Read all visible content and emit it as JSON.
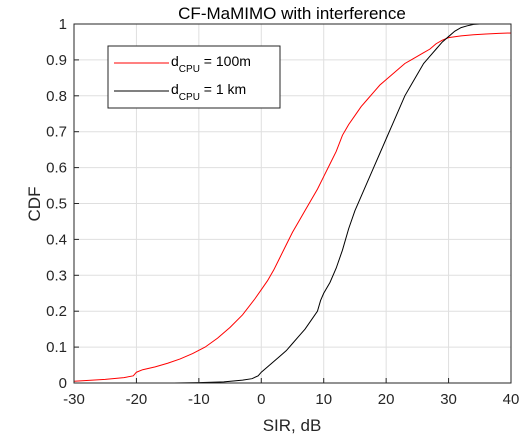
{
  "chart_data": {
    "type": "line",
    "title": "CF-MaMIMO with interference",
    "xlabel": "SIR, dB",
    "ylabel": "CDF",
    "xlim": [
      -30,
      40
    ],
    "ylim": [
      0,
      1
    ],
    "xticks": [
      -30,
      -20,
      -10,
      0,
      10,
      20,
      30,
      40
    ],
    "yticks": [
      0,
      0.1,
      0.2,
      0.3,
      0.4,
      0.5,
      0.6,
      0.7,
      0.8,
      0.9,
      1
    ],
    "grid": true,
    "legend_position": "top-left",
    "series": [
      {
        "name_main": "d",
        "name_sub": "CPU",
        "name_rest": " = 100m",
        "color": "#ff0000",
        "x": [
          -30,
          -28,
          -25,
          -22,
          -20.5,
          -20,
          -19,
          -17,
          -15,
          -13,
          -11,
          -9,
          -7,
          -5,
          -3,
          -1,
          0,
          1,
          2,
          3,
          4,
          5,
          6,
          7,
          8,
          9,
          10,
          11,
          12,
          13,
          14,
          15,
          16,
          17,
          18,
          19,
          20,
          21,
          22,
          23,
          24,
          25,
          26,
          27,
          28,
          29,
          30,
          32,
          34,
          36,
          38,
          40
        ],
        "y": [
          0.005,
          0.007,
          0.01,
          0.015,
          0.02,
          0.03,
          0.037,
          0.045,
          0.055,
          0.067,
          0.082,
          0.1,
          0.125,
          0.155,
          0.19,
          0.235,
          0.26,
          0.285,
          0.315,
          0.35,
          0.385,
          0.42,
          0.45,
          0.48,
          0.51,
          0.54,
          0.575,
          0.61,
          0.645,
          0.69,
          0.72,
          0.745,
          0.77,
          0.79,
          0.81,
          0.83,
          0.845,
          0.86,
          0.875,
          0.89,
          0.9,
          0.91,
          0.92,
          0.93,
          0.945,
          0.955,
          0.962,
          0.967,
          0.97,
          0.972,
          0.974,
          0.975
        ]
      },
      {
        "name_main": "d",
        "name_sub": "CPU",
        "name_rest": " = 1 km",
        "color": "#000000",
        "x": [
          -14,
          -10,
          -6,
          -3,
          -1.5,
          -0.5,
          0,
          1,
          2,
          3,
          4,
          5,
          6,
          7,
          8,
          9,
          9.5,
          10,
          11,
          12,
          13,
          14,
          15,
          16,
          17,
          18,
          19,
          20,
          21,
          22,
          23,
          24,
          25,
          26,
          27,
          28,
          29,
          30,
          31,
          32,
          33,
          34,
          35
        ],
        "y": [
          0,
          0.001,
          0.003,
          0.008,
          0.012,
          0.02,
          0.03,
          0.045,
          0.06,
          0.075,
          0.09,
          0.11,
          0.13,
          0.15,
          0.175,
          0.2,
          0.23,
          0.25,
          0.28,
          0.32,
          0.37,
          0.43,
          0.48,
          0.52,
          0.56,
          0.6,
          0.64,
          0.68,
          0.72,
          0.76,
          0.8,
          0.83,
          0.86,
          0.89,
          0.91,
          0.93,
          0.95,
          0.965,
          0.98,
          0.99,
          0.995,
          0.999,
          1.0
        ]
      }
    ]
  }
}
